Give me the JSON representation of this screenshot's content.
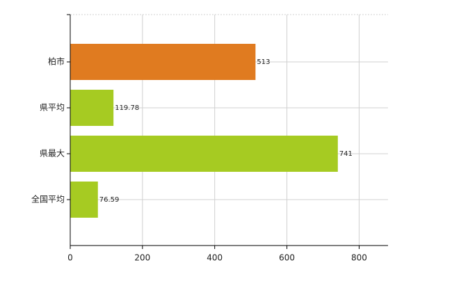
{
  "chart_data": {
    "type": "hbar",
    "categories": [
      "柏市",
      "県平均",
      "県最大",
      "全国平均"
    ],
    "values": [
      513,
      119.78,
      741,
      76.59
    ],
    "colors": [
      "#e07b20",
      "#a6cb22",
      "#a6cb22",
      "#a6cb22"
    ],
    "xlim": [
      0,
      880
    ],
    "xticks": [
      0,
      200,
      400,
      600,
      800
    ],
    "grid": true
  }
}
